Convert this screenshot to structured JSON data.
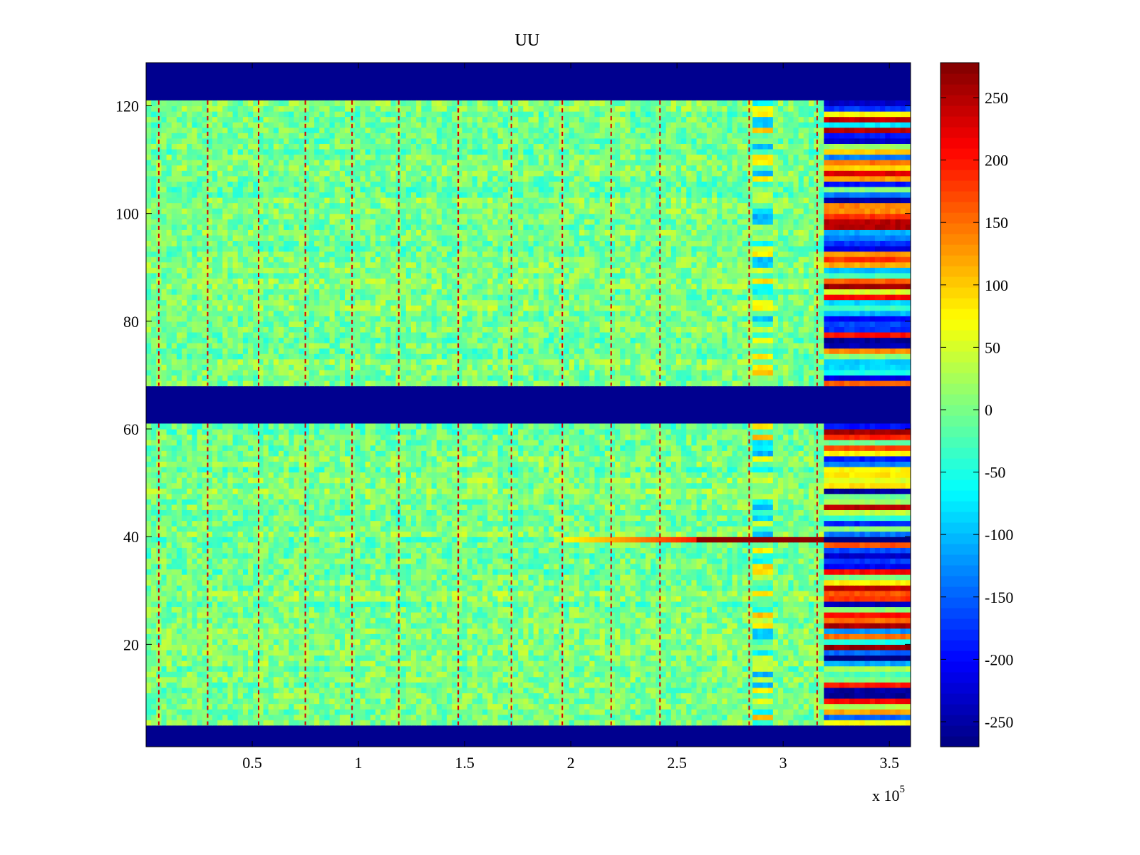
{
  "chart_data": {
    "type": "heatmap",
    "title": "UU",
    "xlabel": "",
    "ylabel": "",
    "x_multiplier_label": "x 10",
    "x_multiplier_exponent": "5",
    "xlim": [
      0,
      3.6
    ],
    "ylim": [
      1,
      128
    ],
    "x_ticks": [
      {
        "value": 0.5,
        "label": "0.5"
      },
      {
        "value": 1,
        "label": "1"
      },
      {
        "value": 1.5,
        "label": "1.5"
      },
      {
        "value": 2,
        "label": "2"
      },
      {
        "value": 2.5,
        "label": "2.5"
      },
      {
        "value": 3,
        "label": "3"
      },
      {
        "value": 3.5,
        "label": "3.5"
      }
    ],
    "y_ticks": [
      {
        "value": 20,
        "label": "20"
      },
      {
        "value": 40,
        "label": "40"
      },
      {
        "value": 60,
        "label": "60"
      },
      {
        "value": 80,
        "label": "80"
      },
      {
        "value": 100,
        "label": "100"
      },
      {
        "value": 120,
        "label": "120"
      }
    ],
    "colorbar": {
      "colormap": "jet",
      "clim": [
        -270,
        278
      ],
      "ticks": [
        {
          "value": 250,
          "label": "250"
        },
        {
          "value": 200,
          "label": "200"
        },
        {
          "value": 150,
          "label": "150"
        },
        {
          "value": 100,
          "label": "100"
        },
        {
          "value": 50,
          "label": "50"
        },
        {
          "value": 0,
          "label": "0"
        },
        {
          "value": -50,
          "label": "-50"
        },
        {
          "value": -100,
          "label": "-100"
        },
        {
          "value": -150,
          "label": "-150"
        },
        {
          "value": -200,
          "label": "-200"
        },
        {
          "value": -250,
          "label": "-250"
        }
      ]
    },
    "masked_rows": [
      {
        "from": 1,
        "to": 4,
        "value": -270
      },
      {
        "from": 61,
        "to": 67,
        "value": -270
      },
      {
        "from": 121,
        "to": 128,
        "value": -270
      }
    ],
    "background_value_range": [
      -40,
      40
    ],
    "periodic_spike_columns_x": [
      0.06,
      0.29,
      0.53,
      0.75,
      0.97,
      1.19,
      1.47,
      1.72,
      1.96,
      2.19,
      2.42,
      2.84,
      3.16
    ],
    "high_variance_regions": [
      {
        "x_from": 2.85,
        "x_to": 2.95,
        "amplitude": 110
      },
      {
        "x_from": 3.19,
        "x_to": 3.6,
        "amplitude": 270
      }
    ],
    "notable_row": {
      "y": 39,
      "x_from": 1.96,
      "x_to": 3.2,
      "value_trend": "rising to 270 near x=2.65-3.2, then -270 beyond x=3.19"
    }
  }
}
